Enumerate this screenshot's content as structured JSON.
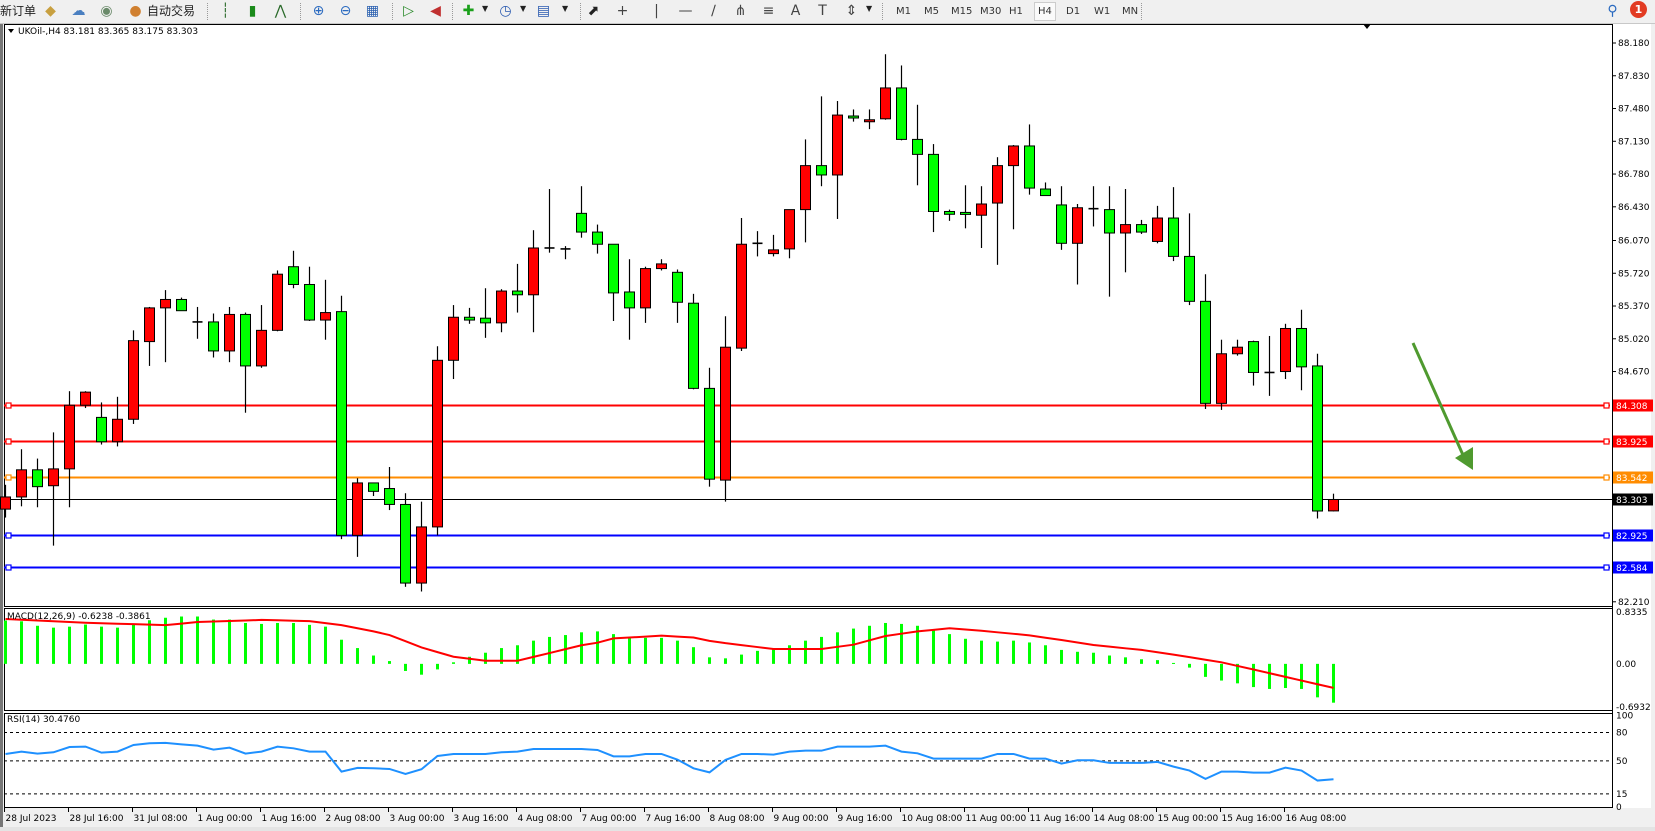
{
  "toolbar": {
    "new_order": "新订单",
    "auto_trading": "自动交易",
    "periods": [
      "M1",
      "M5",
      "M15",
      "M30",
      "H1",
      "H4",
      "D1",
      "W1",
      "MN"
    ],
    "active_period": "H4",
    "notification_count": "1",
    "icons": [
      "book-icon",
      "cloud-icon",
      "signal-icon",
      "auto-trading-icon",
      "bar-chart-icon",
      "candlestick-icon",
      "line-chart-icon",
      "zoom-in-icon",
      "zoom-out-icon",
      "tile-windows-icon",
      "autoscroll-icon",
      "chart-shift-icon",
      "new-chart-icon",
      "clock-icon",
      "template-icon",
      "cursor-icon",
      "crosshair-icon",
      "vertical-line-icon",
      "horizontal-line-icon",
      "trendline-icon",
      "channel-icon",
      "fibonacci-icon",
      "text-icon",
      "text-label-icon",
      "arrows-icon",
      "search-icon",
      "notification-icon"
    ]
  },
  "chart": {
    "header": "UKOil-,H4  83.181 83.365 83.175 83.303",
    "colors": {
      "bull": "#ff0000",
      "bear": "#00ff00",
      "macd_hist": "#00ff00",
      "macd_signal": "#ff0000",
      "rsi": "#1e90ff",
      "arrow": "#4f9a2f"
    },
    "price_ticks": [
      "88.180",
      "87.830",
      "87.480",
      "87.130",
      "86.780",
      "86.430",
      "86.070",
      "85.720",
      "85.370",
      "85.020",
      "84.670",
      "82.210"
    ],
    "hlines": [
      {
        "price": 84.308,
        "label": "84.308",
        "color": "#ff0000"
      },
      {
        "price": 83.925,
        "label": "83.925",
        "color": "#ff0000"
      },
      {
        "price": 83.542,
        "label": "83.542",
        "color": "#ff8c00"
      },
      {
        "price": 82.925,
        "label": "82.925",
        "color": "#0000ff"
      },
      {
        "price": 82.584,
        "label": "82.584",
        "color": "#0000ff"
      }
    ],
    "bid": {
      "price": 83.303,
      "label": "83.303",
      "color": "#000000"
    }
  },
  "chart_data": {
    "type": "candlestick",
    "symbol": "UKOil-",
    "timeframe": "H4",
    "ylim": [
      82.165,
      88.383
    ],
    "ohlc": [
      [
        83.2,
        83.46,
        83.11,
        83.33
      ],
      [
        83.33,
        83.84,
        83.23,
        83.62
      ],
      [
        83.62,
        83.74,
        83.22,
        83.44
      ],
      [
        83.45,
        84.02,
        82.81,
        83.63
      ],
      [
        83.63,
        84.46,
        83.22,
        84.31
      ],
      [
        84.31,
        84.46,
        84.28,
        84.45
      ],
      [
        84.18,
        84.34,
        83.89,
        83.92
      ],
      [
        83.92,
        84.4,
        83.87,
        84.16
      ],
      [
        84.16,
        85.11,
        84.11,
        85.0
      ],
      [
        84.99,
        85.36,
        84.73,
        85.35
      ],
      [
        85.35,
        85.54,
        84.77,
        85.44
      ],
      [
        85.44,
        85.46,
        85.32,
        85.32
      ],
      [
        85.2,
        85.36,
        85.02,
        85.205
      ],
      [
        85.2,
        85.29,
        84.82,
        84.89
      ],
      [
        84.89,
        85.36,
        84.77,
        85.28
      ],
      [
        85.28,
        85.3,
        84.23,
        84.73
      ],
      [
        84.73,
        85.38,
        84.71,
        85.11
      ],
      [
        85.11,
        85.75,
        85.1,
        85.71
      ],
      [
        85.79,
        85.96,
        85.56,
        85.6
      ],
      [
        85.6,
        85.79,
        85.21,
        85.22
      ],
      [
        85.22,
        85.65,
        85.01,
        85.3
      ],
      [
        85.31,
        85.48,
        82.88,
        82.92
      ],
      [
        82.92,
        83.53,
        82.69,
        83.48
      ],
      [
        83.48,
        83.48,
        83.34,
        83.39
      ],
      [
        83.42,
        83.65,
        83.19,
        83.25
      ],
      [
        83.25,
        83.37,
        82.37,
        82.41
      ],
      [
        82.41,
        83.28,
        82.32,
        83.01
      ],
      [
        83.01,
        84.94,
        82.92,
        84.79
      ],
      [
        84.79,
        85.38,
        84.59,
        85.25
      ],
      [
        85.25,
        85.35,
        85.18,
        85.22
      ],
      [
        85.24,
        85.56,
        85.03,
        85.19
      ],
      [
        85.19,
        85.55,
        85.09,
        85.53
      ],
      [
        85.53,
        85.82,
        85.3,
        85.49
      ],
      [
        85.49,
        86.18,
        85.09,
        85.99
      ],
      [
        85.99,
        86.62,
        85.94,
        86.0
      ],
      [
        85.98,
        86.01,
        85.87,
        85.985
      ],
      [
        86.36,
        86.65,
        86.1,
        86.16
      ],
      [
        86.16,
        86.24,
        85.93,
        86.03
      ],
      [
        86.03,
        86.03,
        85.21,
        85.51
      ],
      [
        85.52,
        85.87,
        85.01,
        85.35
      ],
      [
        85.35,
        85.79,
        85.19,
        85.77
      ],
      [
        85.77,
        85.87,
        85.75,
        85.82
      ],
      [
        85.73,
        85.76,
        85.19,
        85.41
      ],
      [
        85.4,
        85.5,
        84.48,
        84.49
      ],
      [
        84.49,
        84.71,
        83.44,
        83.52
      ],
      [
        83.51,
        85.26,
        83.28,
        84.93
      ],
      [
        84.92,
        86.31,
        84.89,
        86.03
      ],
      [
        86.04,
        86.17,
        85.9,
        86.045
      ],
      [
        85.93,
        86.13,
        85.9,
        85.97
      ],
      [
        85.98,
        86.4,
        85.88,
        86.4
      ],
      [
        86.4,
        87.15,
        86.05,
        86.87
      ],
      [
        86.87,
        87.61,
        86.65,
        86.77
      ],
      [
        86.77,
        87.56,
        86.3,
        87.41
      ],
      [
        87.4,
        87.47,
        87.34,
        87.38
      ],
      [
        87.34,
        87.47,
        87.26,
        87.36
      ],
      [
        87.37,
        88.06,
        87.36,
        87.7
      ],
      [
        87.7,
        87.94,
        87.14,
        87.15
      ],
      [
        87.15,
        87.52,
        86.66,
        86.99
      ],
      [
        86.99,
        87.1,
        86.16,
        86.38
      ],
      [
        86.38,
        86.4,
        86.28,
        86.35
      ],
      [
        86.37,
        86.66,
        86.2,
        86.35
      ],
      [
        86.34,
        86.65,
        85.99,
        86.46
      ],
      [
        86.47,
        86.96,
        85.81,
        86.87
      ],
      [
        86.87,
        87.09,
        86.19,
        87.08
      ],
      [
        87.08,
        87.31,
        86.56,
        86.63
      ],
      [
        86.62,
        86.69,
        86.55,
        86.55
      ],
      [
        86.45,
        86.65,
        85.97,
        86.04
      ],
      [
        86.04,
        86.46,
        85.6,
        86.42
      ],
      [
        86.41,
        86.65,
        86.22,
        86.415
      ],
      [
        86.4,
        86.65,
        85.47,
        86.15
      ],
      [
        86.15,
        86.62,
        85.73,
        86.24
      ],
      [
        86.24,
        86.29,
        86.14,
        86.16
      ],
      [
        86.06,
        86.44,
        86.04,
        86.31
      ],
      [
        86.31,
        86.64,
        85.85,
        85.9
      ],
      [
        85.9,
        86.36,
        85.38,
        85.42
      ],
      [
        85.42,
        85.71,
        84.27,
        84.33
      ],
      [
        84.33,
        85.01,
        84.26,
        84.86
      ],
      [
        84.86,
        85.01,
        84.84,
        84.93
      ],
      [
        84.99,
        85.0,
        84.52,
        84.66
      ],
      [
        84.66,
        85.05,
        84.41,
        84.665
      ],
      [
        84.67,
        85.18,
        84.59,
        85.13
      ],
      [
        85.13,
        85.33,
        84.47,
        84.72
      ],
      [
        84.73,
        84.86,
        83.1,
        83.18
      ],
      [
        83.181,
        83.365,
        83.175,
        83.303
      ]
    ],
    "time_labels": [
      {
        "index": 0,
        "label": "28 Jul 2023"
      },
      {
        "index": 4,
        "label": "28 Jul 16:00"
      },
      {
        "index": 8,
        "label": "31 Jul 08:00"
      },
      {
        "index": 12,
        "label": "1 Aug 00:00"
      },
      {
        "index": 16,
        "label": "1 Aug 16:00"
      },
      {
        "index": 20,
        "label": "2 Aug 08:00"
      },
      {
        "index": 24,
        "label": "3 Aug 00:00"
      },
      {
        "index": 28,
        "label": "3 Aug 16:00"
      },
      {
        "index": 32,
        "label": "4 Aug 08:00"
      },
      {
        "index": 36,
        "label": "7 Aug 00:00"
      },
      {
        "index": 40,
        "label": "7 Aug 16:00"
      },
      {
        "index": 44,
        "label": "8 Aug 08:00"
      },
      {
        "index": 48,
        "label": "9 Aug 00:00"
      },
      {
        "index": 52,
        "label": "9 Aug 16:00"
      },
      {
        "index": 56,
        "label": "10 Aug 08:00"
      },
      {
        "index": 60,
        "label": "11 Aug 00:00"
      },
      {
        "index": 64,
        "label": "11 Aug 16:00"
      },
      {
        "index": 68,
        "label": "14 Aug 08:00"
      },
      {
        "index": 72,
        "label": "15 Aug 00:00"
      },
      {
        "index": 76,
        "label": "15 Aug 16:00"
      },
      {
        "index": 80,
        "label": "16 Aug 08:00"
      }
    ],
    "macd": {
      "title": "MACD(12,26,9) -0.6238 -0.3861",
      "axis_labels": [
        "0.8335",
        "0.00",
        "-0.6932"
      ],
      "ylim": [
        -0.6932,
        0.8335
      ],
      "histogram": [
        0.697,
        0.684,
        0.612,
        0.582,
        0.598,
        0.632,
        0.598,
        0.582,
        0.642,
        0.701,
        0.741,
        0.761,
        0.761,
        0.712,
        0.712,
        0.657,
        0.642,
        0.657,
        0.657,
        0.627,
        0.598,
        0.388,
        0.254,
        0.134,
        0.045,
        -0.114,
        -0.174,
        -0.089,
        0.025,
        0.114,
        0.179,
        0.254,
        0.299,
        0.373,
        0.433,
        0.463,
        0.507,
        0.522,
        0.478,
        0.418,
        0.418,
        0.418,
        0.373,
        0.268,
        0.105,
        0.089,
        0.149,
        0.209,
        0.239,
        0.299,
        0.373,
        0.433,
        0.507,
        0.567,
        0.612,
        0.657,
        0.642,
        0.612,
        0.538,
        0.478,
        0.403,
        0.373,
        0.358,
        0.373,
        0.344,
        0.299,
        0.224,
        0.194,
        0.179,
        0.134,
        0.105,
        0.074,
        0.06,
        0.015,
        -0.06,
        -0.209,
        -0.268,
        -0.313,
        -0.373,
        -0.403,
        -0.388,
        -0.403,
        -0.538,
        -0.6238
      ],
      "signal": [
        0.721,
        0.709,
        0.697,
        0.685,
        0.673,
        0.661,
        0.653,
        0.645,
        0.638,
        0.63,
        0.622,
        0.647,
        0.672,
        0.68,
        0.689,
        0.697,
        0.706,
        0.7,
        0.693,
        0.687,
        0.655,
        0.622,
        0.572,
        0.522,
        0.463,
        0.364,
        0.264,
        0.189,
        0.114,
        0.082,
        0.05,
        0.05,
        0.05,
        0.112,
        0.174,
        0.237,
        0.299,
        0.34,
        0.41,
        0.423,
        0.438,
        0.453,
        0.438,
        0.423,
        0.37,
        0.333,
        0.302,
        0.27,
        0.239,
        0.239,
        0.239,
        0.239,
        0.274,
        0.308,
        0.378,
        0.448,
        0.485,
        0.522,
        0.547,
        0.572,
        0.552,
        0.532,
        0.507,
        0.483,
        0.458,
        0.42,
        0.383,
        0.343,
        0.303,
        0.277,
        0.25,
        0.224,
        0.187,
        0.149,
        0.108,
        0.066,
        0.025,
        -0.033,
        -0.09,
        -0.15,
        -0.209,
        -0.268,
        -0.327,
        -0.3861
      ]
    },
    "rsi": {
      "title": "RSI(14) 30.4760",
      "levels": [
        80,
        50,
        15
      ],
      "axis_labels": [
        "100",
        "80",
        "50",
        "15",
        "0"
      ],
      "ylim": [
        0,
        100
      ],
      "values": [
        57.3,
        59.8,
        57.7,
        59.1,
        64.7,
        65.1,
        58.7,
        59.8,
        66.8,
        68.6,
        69.0,
        67.5,
        66.1,
        61.9,
        64.0,
        57.7,
        59.8,
        65.1,
        63.3,
        59.8,
        59.8,
        38.6,
        42.5,
        42.1,
        41.4,
        36.1,
        41.1,
        55.2,
        57.3,
        57.3,
        57.3,
        59.1,
        59.8,
        62.6,
        62.6,
        62.6,
        62.6,
        61.5,
        54.8,
        54.8,
        57.3,
        57.3,
        51.3,
        42.1,
        37.8,
        51.0,
        57.3,
        57.3,
        56.6,
        59.8,
        60.8,
        60.8,
        65.1,
        65.1,
        65.1,
        66.1,
        59.8,
        58.0,
        52.4,
        52.4,
        52.4,
        52.4,
        57.3,
        57.3,
        52.4,
        52.4,
        47.1,
        50.6,
        50.6,
        47.8,
        47.8,
        47.8,
        48.9,
        43.9,
        39.7,
        30.9,
        38.6,
        38.6,
        37.5,
        37.5,
        42.8,
        39.7,
        29.1,
        30.476
      ]
    }
  }
}
